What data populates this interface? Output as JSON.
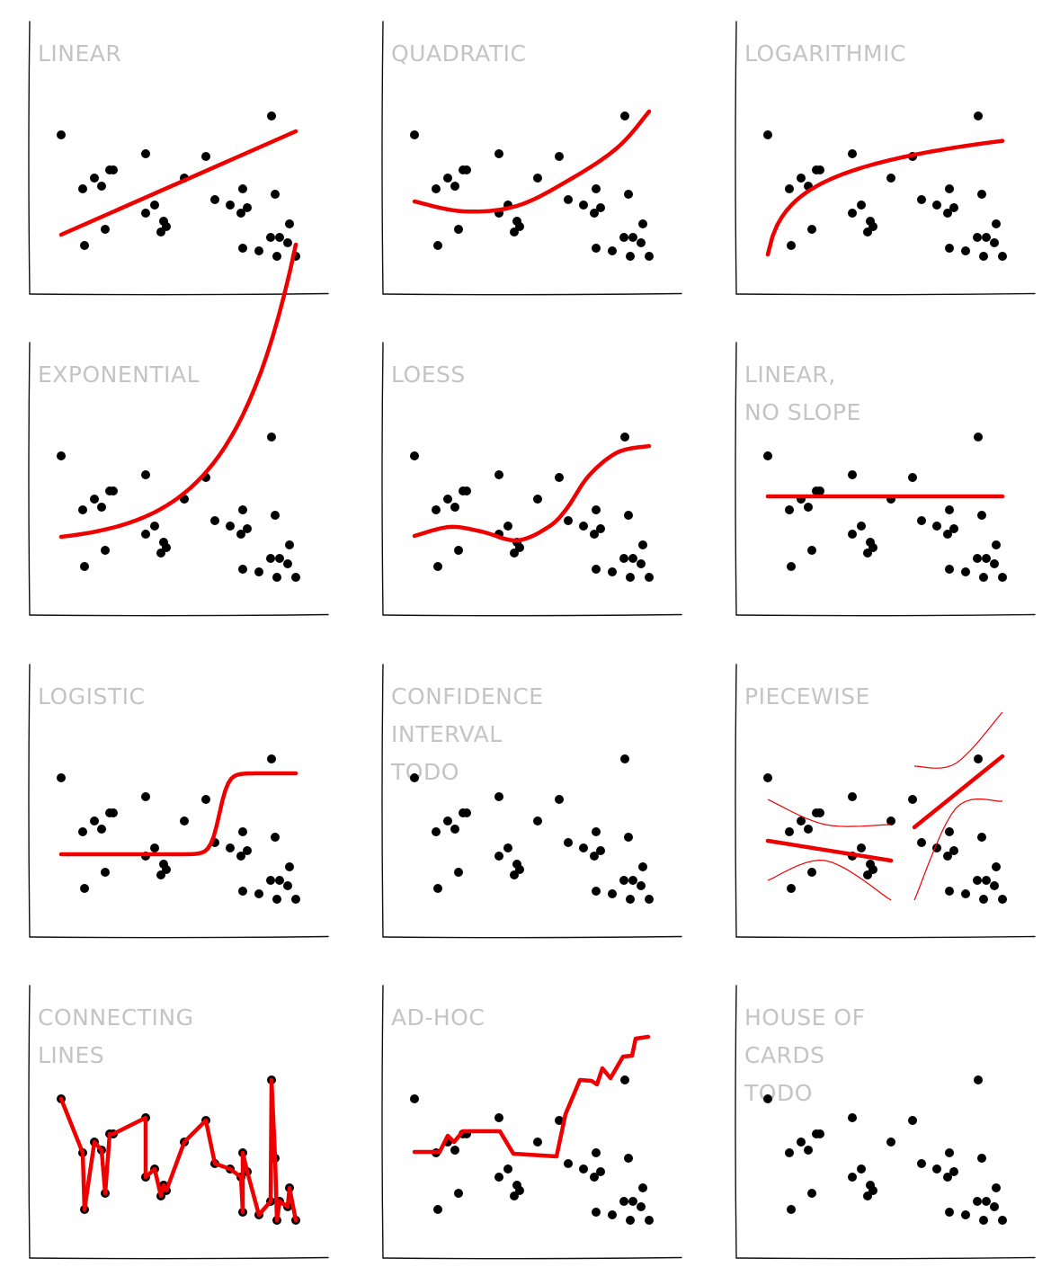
{
  "chart_data": [
    {
      "type": "scatter",
      "title": "LINEAR",
      "fit": "linear"
    },
    {
      "type": "scatter",
      "title": "QUADRATIC",
      "fit": "quadratic"
    },
    {
      "type": "scatter",
      "title": "LOGARITHMIC",
      "fit": "logarithmic"
    },
    {
      "type": "scatter",
      "title": "EXPONENTIAL",
      "fit": "exponential"
    },
    {
      "type": "scatter",
      "title": "LOESS",
      "fit": "loess"
    },
    {
      "type": "scatter",
      "title": "LINEAR,\nNO SLOPE",
      "fit": "flat"
    },
    {
      "type": "scatter",
      "title": "LOGISTIC",
      "fit": "logistic"
    },
    {
      "type": "scatter",
      "title": "CONFIDENCE\nINTERVAL\nTODO",
      "fit": "none"
    },
    {
      "type": "scatter",
      "title": "PIECEWISE",
      "fit": "piecewise"
    },
    {
      "type": "scatter",
      "title": "CONNECTING\nLINES",
      "fit": "connect"
    },
    {
      "type": "scatter",
      "title": "AD-HOC",
      "fit": "adhoc"
    },
    {
      "type": "scatter",
      "title": "HOUSE OF\nCARDS\nTODO",
      "fit": "none"
    }
  ],
  "points": [
    [
      36,
      42
    ],
    [
      60,
      62
    ],
    [
      62,
      83
    ],
    [
      73,
      58
    ],
    [
      81,
      61
    ],
    [
      85,
      77
    ],
    [
      90,
      55
    ],
    [
      94,
      55
    ],
    [
      130,
      49
    ],
    [
      130,
      71
    ],
    [
      140,
      68
    ],
    [
      147,
      78
    ],
    [
      150,
      74
    ],
    [
      153,
      76
    ],
    [
      173,
      58
    ],
    [
      197,
      50
    ],
    [
      207,
      66
    ],
    [
      224,
      68
    ],
    [
      236,
      71
    ],
    [
      238,
      84
    ],
    [
      238,
      62
    ],
    [
      243,
      69
    ],
    [
      256,
      85
    ],
    [
      269,
      80
    ],
    [
      270,
      35
    ],
    [
      274,
      64
    ],
    [
      276,
      87
    ],
    [
      279,
      80
    ],
    [
      288,
      82
    ],
    [
      290,
      75
    ],
    [
      297,
      87
    ]
  ],
  "colors": {
    "points": "#000000",
    "fit": "#ee0000",
    "title": "#c4c4c4",
    "axis": "#111111"
  }
}
